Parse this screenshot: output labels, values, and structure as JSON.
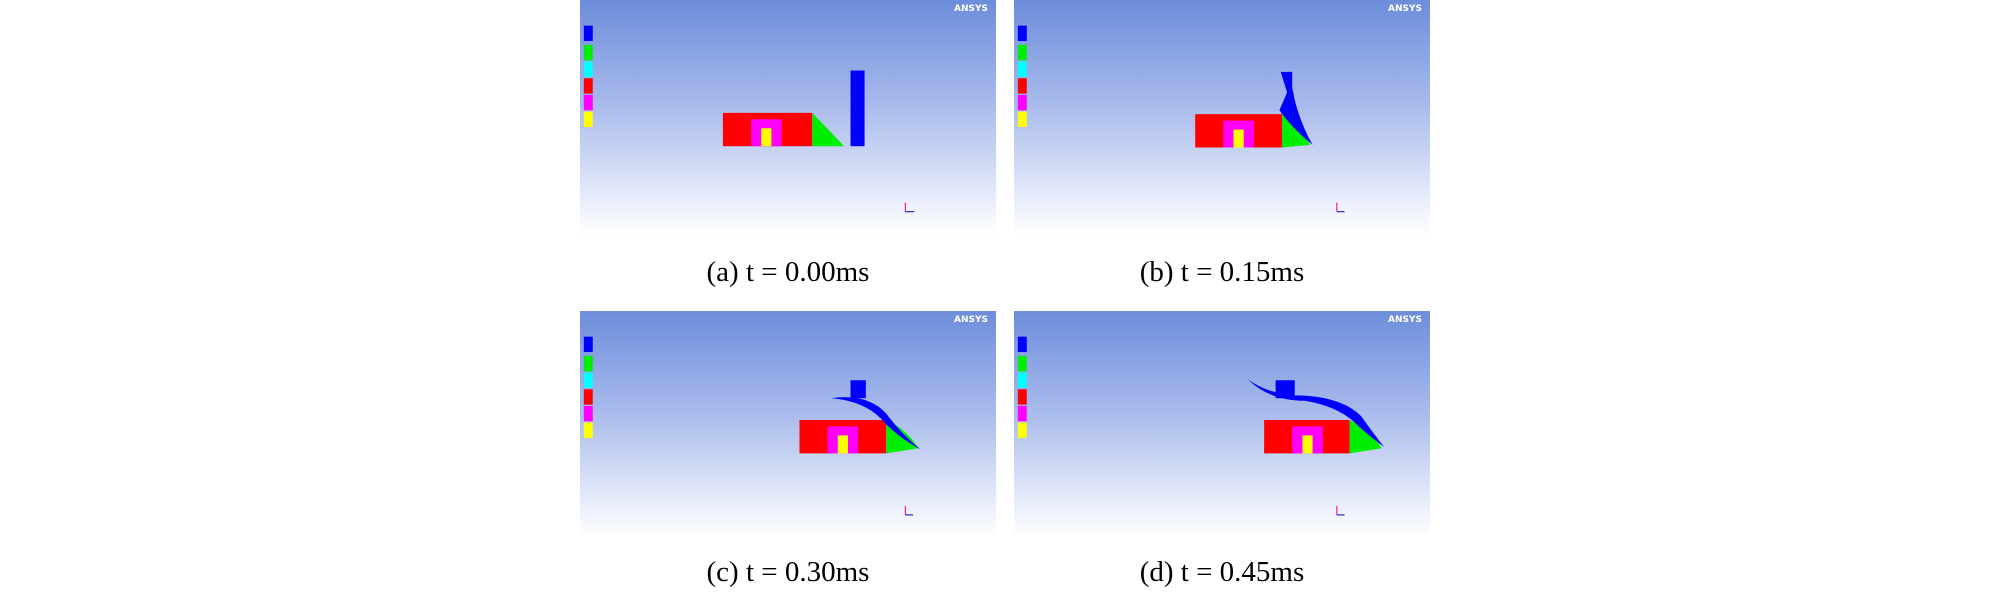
{
  "logo": "ANSYS",
  "panels": [
    {
      "caption": "(a) t = 0.00ms"
    },
    {
      "caption": "(b) t = 0.15ms"
    },
    {
      "caption": "(c) t = 0.30ms"
    },
    {
      "caption": "(d) t = 0.45ms"
    }
  ]
}
